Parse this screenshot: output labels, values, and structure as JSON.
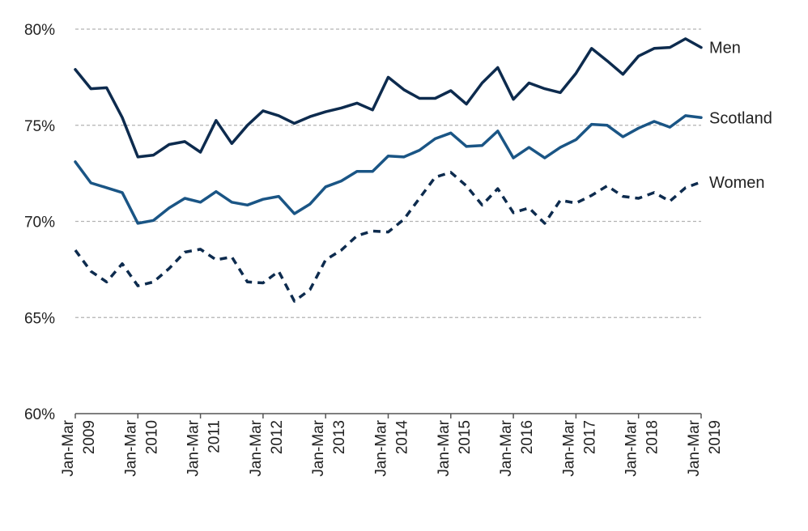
{
  "chart_data": {
    "type": "line",
    "title": "",
    "xlabel": "",
    "ylabel": "",
    "ylim": [
      60,
      80
    ],
    "y_ticks": [
      "60%",
      "65%",
      "70%",
      "75%",
      "80%"
    ],
    "y_tick_values": [
      60,
      65,
      70,
      75,
      80
    ],
    "grid": "horizontal dashed",
    "x_tick_labels": [
      {
        "period": "Jan-Mar",
        "year": "2009"
      },
      {
        "period": "Jan-Mar",
        "year": "2010"
      },
      {
        "period": "Jan-Mar",
        "year": "2011"
      },
      {
        "period": "Jan-Mar",
        "year": "2012"
      },
      {
        "period": "Jan-Mar",
        "year": "2013"
      },
      {
        "period": "Jan-Mar",
        "year": "2014"
      },
      {
        "period": "Jan-Mar",
        "year": "2015"
      },
      {
        "period": "Jan-Mar",
        "year": "2016"
      },
      {
        "period": "Jan-Mar",
        "year": "2017"
      },
      {
        "period": "Jan-Mar",
        "year": "2018"
      },
      {
        "period": "Jan-Mar",
        "year": "2019"
      }
    ],
    "series": [
      {
        "name": "Men",
        "color": "#0d2b4e",
        "style": "solid",
        "values": [
          77.9,
          76.9,
          76.95,
          75.4,
          73.35,
          73.45,
          74.0,
          74.15,
          73.6,
          75.25,
          74.05,
          75.0,
          75.75,
          75.5,
          75.1,
          75.45,
          75.7,
          75.9,
          76.15,
          75.8,
          77.5,
          76.85,
          76.4,
          76.4,
          76.8,
          76.1,
          77.2,
          78.0,
          76.35,
          77.2,
          76.9,
          76.7,
          77.7,
          79.0,
          78.35,
          77.65,
          78.6,
          79.0,
          79.05,
          79.5,
          79.05
        ]
      },
      {
        "name": "Scotland",
        "color": "#1a5585",
        "style": "solid",
        "values": [
          73.1,
          72.0,
          71.75,
          71.5,
          69.9,
          70.05,
          70.7,
          71.2,
          71.0,
          71.55,
          71.0,
          70.85,
          71.15,
          71.3,
          70.4,
          70.9,
          71.8,
          72.1,
          72.6,
          72.6,
          73.4,
          73.35,
          73.7,
          74.3,
          74.6,
          73.9,
          73.95,
          74.7,
          73.3,
          73.85,
          73.3,
          73.85,
          74.25,
          75.05,
          75.0,
          74.4,
          74.85,
          75.2,
          74.9,
          75.5,
          75.4
        ]
      },
      {
        "name": "Women",
        "color": "#0d2b4e",
        "style": "dashed",
        "values": [
          68.5,
          67.4,
          66.85,
          67.8,
          66.65,
          66.85,
          67.55,
          68.4,
          68.55,
          68.0,
          68.15,
          66.85,
          66.8,
          67.4,
          65.85,
          66.45,
          68.0,
          68.5,
          69.25,
          69.5,
          69.45,
          70.1,
          71.2,
          72.3,
          72.55,
          71.85,
          70.85,
          71.7,
          70.45,
          70.7,
          69.9,
          71.1,
          70.95,
          71.35,
          71.85,
          71.3,
          71.2,
          71.5,
          71.05,
          71.75,
          72.05
        ]
      }
    ]
  }
}
